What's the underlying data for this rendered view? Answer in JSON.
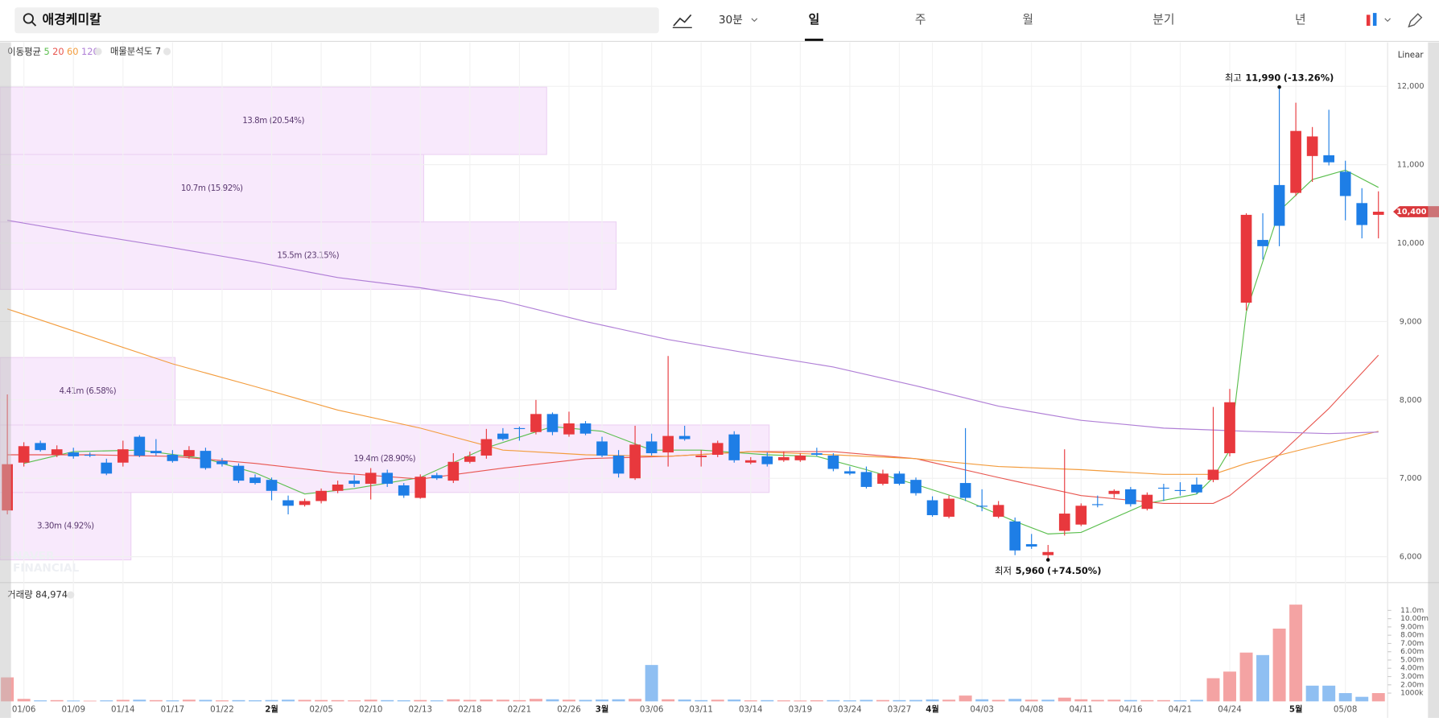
{
  "search": {
    "query": "애경케미칼"
  },
  "toolbar": {
    "interval": "30분",
    "periods": [
      "일",
      "주",
      "월",
      "분기",
      "년"
    ],
    "selected": 0
  },
  "chart_data": {
    "type": "candlestick",
    "scale": "Linear",
    "categories": [
      null,
      "01/06",
      null,
      null,
      "01/09",
      null,
      null,
      "01/14",
      null,
      null,
      "01/17",
      null,
      null,
      "01/22",
      null,
      null,
      "2월",
      null,
      null,
      "02/05",
      null,
      null,
      "02/10",
      null,
      null,
      "02/13",
      null,
      null,
      "02/18",
      null,
      null,
      "02/21",
      null,
      null,
      "02/26",
      null,
      "3월",
      null,
      null,
      "03/06",
      null,
      null,
      "03/11",
      null,
      null,
      "03/14",
      null,
      null,
      "03/19",
      null,
      null,
      "03/24",
      null,
      null,
      "03/27",
      null,
      "4월",
      null,
      null,
      "04/03",
      null,
      null,
      "04/08",
      null,
      null,
      "04/11",
      null,
      null,
      "04/16",
      null,
      null,
      "04/21",
      null,
      null,
      "04/24",
      null,
      null,
      null,
      "5월",
      null,
      null,
      "05/08",
      null,
      null
    ],
    "open": [
      6590,
      7200,
      7450,
      7300,
      7330,
      7300,
      7200,
      7200,
      7530,
      7350,
      7300,
      7280,
      7350,
      7220,
      7160,
      7010,
      6980,
      6720,
      6660,
      6710,
      6840,
      6970,
      6930,
      7070,
      6910,
      6750,
      7040,
      6970,
      7210,
      7290,
      7570,
      7640,
      7590,
      7820,
      7560,
      7700,
      7470,
      7290,
      7000,
      7470,
      7330,
      7540,
      7270,
      7300,
      7560,
      7200,
      7280,
      7230,
      7230,
      7320,
      7290,
      7090,
      7080,
      6930,
      7060,
      6980,
      6720,
      6510,
      6940,
      6650,
      6510,
      6450,
      6160,
      6020,
      6330,
      6410,
      6670,
      6800,
      6860,
      6610,
      6880,
      6850,
      6920,
      6980,
      7320,
      9240,
      10040,
      10740,
      10640,
      11110,
      11120,
      10910,
      10510,
      10360
    ],
    "high": [
      8070,
      7460,
      7480,
      7420,
      7390,
      7330,
      7250,
      7480,
      7550,
      7500,
      7360,
      7410,
      7390,
      7260,
      7190,
      7050,
      7010,
      6780,
      6740,
      6870,
      6970,
      7040,
      7130,
      7110,
      6940,
      7050,
      7070,
      7320,
      7340,
      7630,
      7640,
      7660,
      8000,
      7840,
      7850,
      7730,
      7530,
      7360,
      7670,
      7570,
      8560,
      7670,
      7360,
      7480,
      7600,
      7270,
      7330,
      7340,
      7320,
      7390,
      7320,
      7150,
      7150,
      7110,
      7090,
      7010,
      6770,
      6780,
      7640,
      6860,
      6710,
      6500,
      6290,
      6150,
      7370,
      6680,
      6780,
      6860,
      6890,
      6820,
      6930,
      6950,
      7010,
      7910,
      8140,
      10380,
      10380,
      11990,
      11790,
      11480,
      11700,
      11050,
      10700,
      10660
    ],
    "low": [
      6540,
      7150,
      7340,
      7270,
      7250,
      7270,
      7040,
      7150,
      7270,
      7290,
      7200,
      7250,
      7110,
      7150,
      6940,
      6920,
      6720,
      6540,
      6640,
      6680,
      6810,
      6890,
      6730,
      6890,
      6750,
      6740,
      6980,
      6940,
      7190,
      7250,
      7480,
      7480,
      7560,
      7550,
      7530,
      7550,
      7270,
      7010,
      6980,
      7290,
      7150,
      7480,
      7150,
      7270,
      7200,
      7180,
      7150,
      7210,
      7210,
      7280,
      7090,
      7040,
      6870,
      6910,
      6910,
      6780,
      6510,
      6490,
      6710,
      6580,
      6490,
      6020,
      6100,
      5960,
      6270,
      6390,
      6630,
      6750,
      6640,
      6590,
      6710,
      6780,
      6800,
      6950,
      7280,
      9140,
      9790,
      9960,
      10600,
      10780,
      10990,
      10290,
      10060,
      10060
    ],
    "close": [
      7180,
      7410,
      7360,
      7370,
      7280,
      7290,
      7060,
      7370,
      7290,
      7320,
      7220,
      7360,
      7130,
      7180,
      6970,
      6940,
      6840,
      6650,
      6710,
      6840,
      6920,
      6930,
      7070,
      6930,
      6780,
      7020,
      7000,
      7210,
      7280,
      7500,
      7500,
      7630,
      7820,
      7590,
      7700,
      7570,
      7290,
      7060,
      7430,
      7320,
      7540,
      7500,
      7290,
      7450,
      7230,
      7230,
      7180,
      7270,
      7290,
      7300,
      7120,
      7060,
      6890,
      7060,
      6930,
      6810,
      6530,
      6740,
      6750,
      6640,
      6660,
      6080,
      6130,
      6060,
      6550,
      6650,
      6660,
      6840,
      6670,
      6790,
      6870,
      6840,
      6820,
      7110,
      7970,
      10360,
      9960,
      10220,
      11430,
      11360,
      11030,
      10600,
      10230,
      10400
    ],
    "up_color": "#e8383d",
    "down_color": "#1e7ee6",
    "grid": true,
    "ylim": [
      5670,
      12560
    ],
    "yticks": [
      {
        "value": 6000,
        "label": "6,000"
      },
      {
        "value": 7000,
        "label": "7,000"
      },
      {
        "value": 8000,
        "label": "8,000"
      },
      {
        "value": 9000,
        "label": "9,000"
      },
      {
        "value": 10000,
        "label": "10,000"
      },
      {
        "value": 11000,
        "label": "11,000"
      },
      {
        "value": 12000,
        "label": "12,000"
      }
    ],
    "last_price": {
      "value": 10400,
      "label": "10,400"
    },
    "moving_averages": {
      "title": "이동평균",
      "series": [
        {
          "name": "5",
          "color": "#5cbf4f",
          "x": [
            1,
            4,
            8,
            12,
            15,
            18,
            21,
            25,
            29,
            33,
            36,
            39,
            42,
            46,
            49,
            52,
            55,
            58,
            61,
            63,
            65,
            69,
            72,
            73,
            74,
            75,
            77,
            79,
            81,
            83
          ],
          "values": [
            7190,
            7340,
            7360,
            7250,
            7070,
            6800,
            6870,
            7010,
            7390,
            7660,
            7600,
            7360,
            7360,
            7300,
            7280,
            7110,
            6920,
            6720,
            6450,
            6290,
            6310,
            6680,
            6800,
            7010,
            7360,
            9120,
            10410,
            10810,
            10930,
            10710
          ]
        },
        {
          "name": "20",
          "color": "#e8564f",
          "x": [
            0,
            5,
            10,
            15,
            20,
            25,
            30,
            35,
            40,
            45,
            50,
            55,
            60,
            65,
            70,
            73,
            74,
            77,
            80,
            83
          ],
          "values": [
            7300,
            7300,
            7280,
            7190,
            7070,
            6990,
            7130,
            7250,
            7280,
            7340,
            7340,
            7250,
            7010,
            6780,
            6680,
            6680,
            6780,
            7300,
            7890,
            8570
          ]
        },
        {
          "name": "60",
          "color": "#f39c3d",
          "x": [
            0,
            5,
            10,
            15,
            20,
            25,
            30,
            35,
            40,
            45,
            50,
            55,
            60,
            65,
            70,
            73,
            75,
            79,
            83
          ],
          "values": [
            9160,
            8810,
            8460,
            8170,
            7870,
            7640,
            7360,
            7300,
            7280,
            7340,
            7300,
            7250,
            7150,
            7110,
            7050,
            7050,
            7190,
            7400,
            7600
          ]
        },
        {
          "name": "120",
          "color": "#b07fd6",
          "x": [
            0,
            5,
            10,
            15,
            20,
            25,
            30,
            35,
            40,
            45,
            50,
            55,
            60,
            65,
            70,
            75,
            80,
            83
          ],
          "values": [
            10290,
            10110,
            9940,
            9760,
            9560,
            9430,
            9260,
            9000,
            8770,
            8590,
            8420,
            8180,
            7920,
            7740,
            7640,
            7600,
            7570,
            7590
          ]
        }
      ]
    },
    "volume_profile": {
      "title": "매물분석도 7",
      "color": "#f8e9fc",
      "border": "#ecd2f3",
      "bins": [
        {
          "low": 5960,
          "high": 6820,
          "share": 4.92,
          "label": "3.30m (4.92%)"
        },
        {
          "low": 6820,
          "high": 7680,
          "share": 28.9,
          "label": "19.4m (28.90%)"
        },
        {
          "low": 7680,
          "high": 8540,
          "share": 6.58,
          "label": "4.41m (6.58%)"
        },
        {
          "low": 9410,
          "high": 10270,
          "share": 23.15,
          "label": "15.5m (23.15%)"
        },
        {
          "low": 10270,
          "high": 11130,
          "share": 15.92,
          "label": "10.7m (15.92%)"
        },
        {
          "low": 11130,
          "high": 11990,
          "share": 20.54,
          "label": "13.8m (20.54%)"
        }
      ]
    },
    "annotations": [
      {
        "index": 77,
        "at": "high",
        "label": "최고",
        "value": {
          "value": 11990,
          "label": "11,990"
        },
        "change": "(-13.26%)"
      },
      {
        "index": 63,
        "at": "low",
        "label": "최저",
        "value": {
          "value": 5960,
          "label": "5,960"
        },
        "change": "(+74.50%)"
      }
    ],
    "volume": {
      "title": "거래량 84,974",
      "up_color": "#f4a3a3",
      "down_color": "#8fbff2",
      "values": [
        2900000,
        300000,
        120000,
        150000,
        100000,
        80000,
        120000,
        180000,
        200000,
        150000,
        120000,
        200000,
        180000,
        120000,
        150000,
        130000,
        160000,
        200000,
        180000,
        160000,
        150000,
        120000,
        200000,
        150000,
        130000,
        160000,
        120000,
        250000,
        180000,
        220000,
        200000,
        150000,
        300000,
        250000,
        200000,
        180000,
        220000,
        250000,
        300000,
        4400000,
        250000,
        220000,
        150000,
        200000,
        220000,
        120000,
        150000,
        120000,
        100000,
        130000,
        150000,
        120000,
        180000,
        160000,
        150000,
        170000,
        230000,
        200000,
        700000,
        250000,
        180000,
        300000,
        200000,
        200000,
        450000,
        250000,
        180000,
        200000,
        160000,
        150000,
        150000,
        140000,
        180000,
        2800000,
        3600000,
        5900000,
        5600000,
        8800000,
        11700000,
        1900000,
        1900000,
        1000000,
        550000,
        1000000
      ],
      "ylim": [
        0,
        12100000
      ],
      "yticks": [
        {
          "value": 1000000,
          "label": "1000k"
        },
        {
          "value": 2000000,
          "label": "2.00m"
        },
        {
          "value": 3000000,
          "label": "3.00m"
        },
        {
          "value": 4000000,
          "label": "4.00m"
        },
        {
          "value": 5000000,
          "label": "5.00m"
        },
        {
          "value": 6000000,
          "label": "6.00m"
        },
        {
          "value": 7000000,
          "label": "7.00m"
        },
        {
          "value": 8000000,
          "label": "8.00m"
        },
        {
          "value": 9000000,
          "label": "9.00m"
        },
        {
          "value": 10000000,
          "label": "10.00m"
        },
        {
          "value": 11000000,
          "label": "11.0m"
        }
      ]
    },
    "watermark": [
      "NAVER",
      "FINANCIAL"
    ]
  }
}
